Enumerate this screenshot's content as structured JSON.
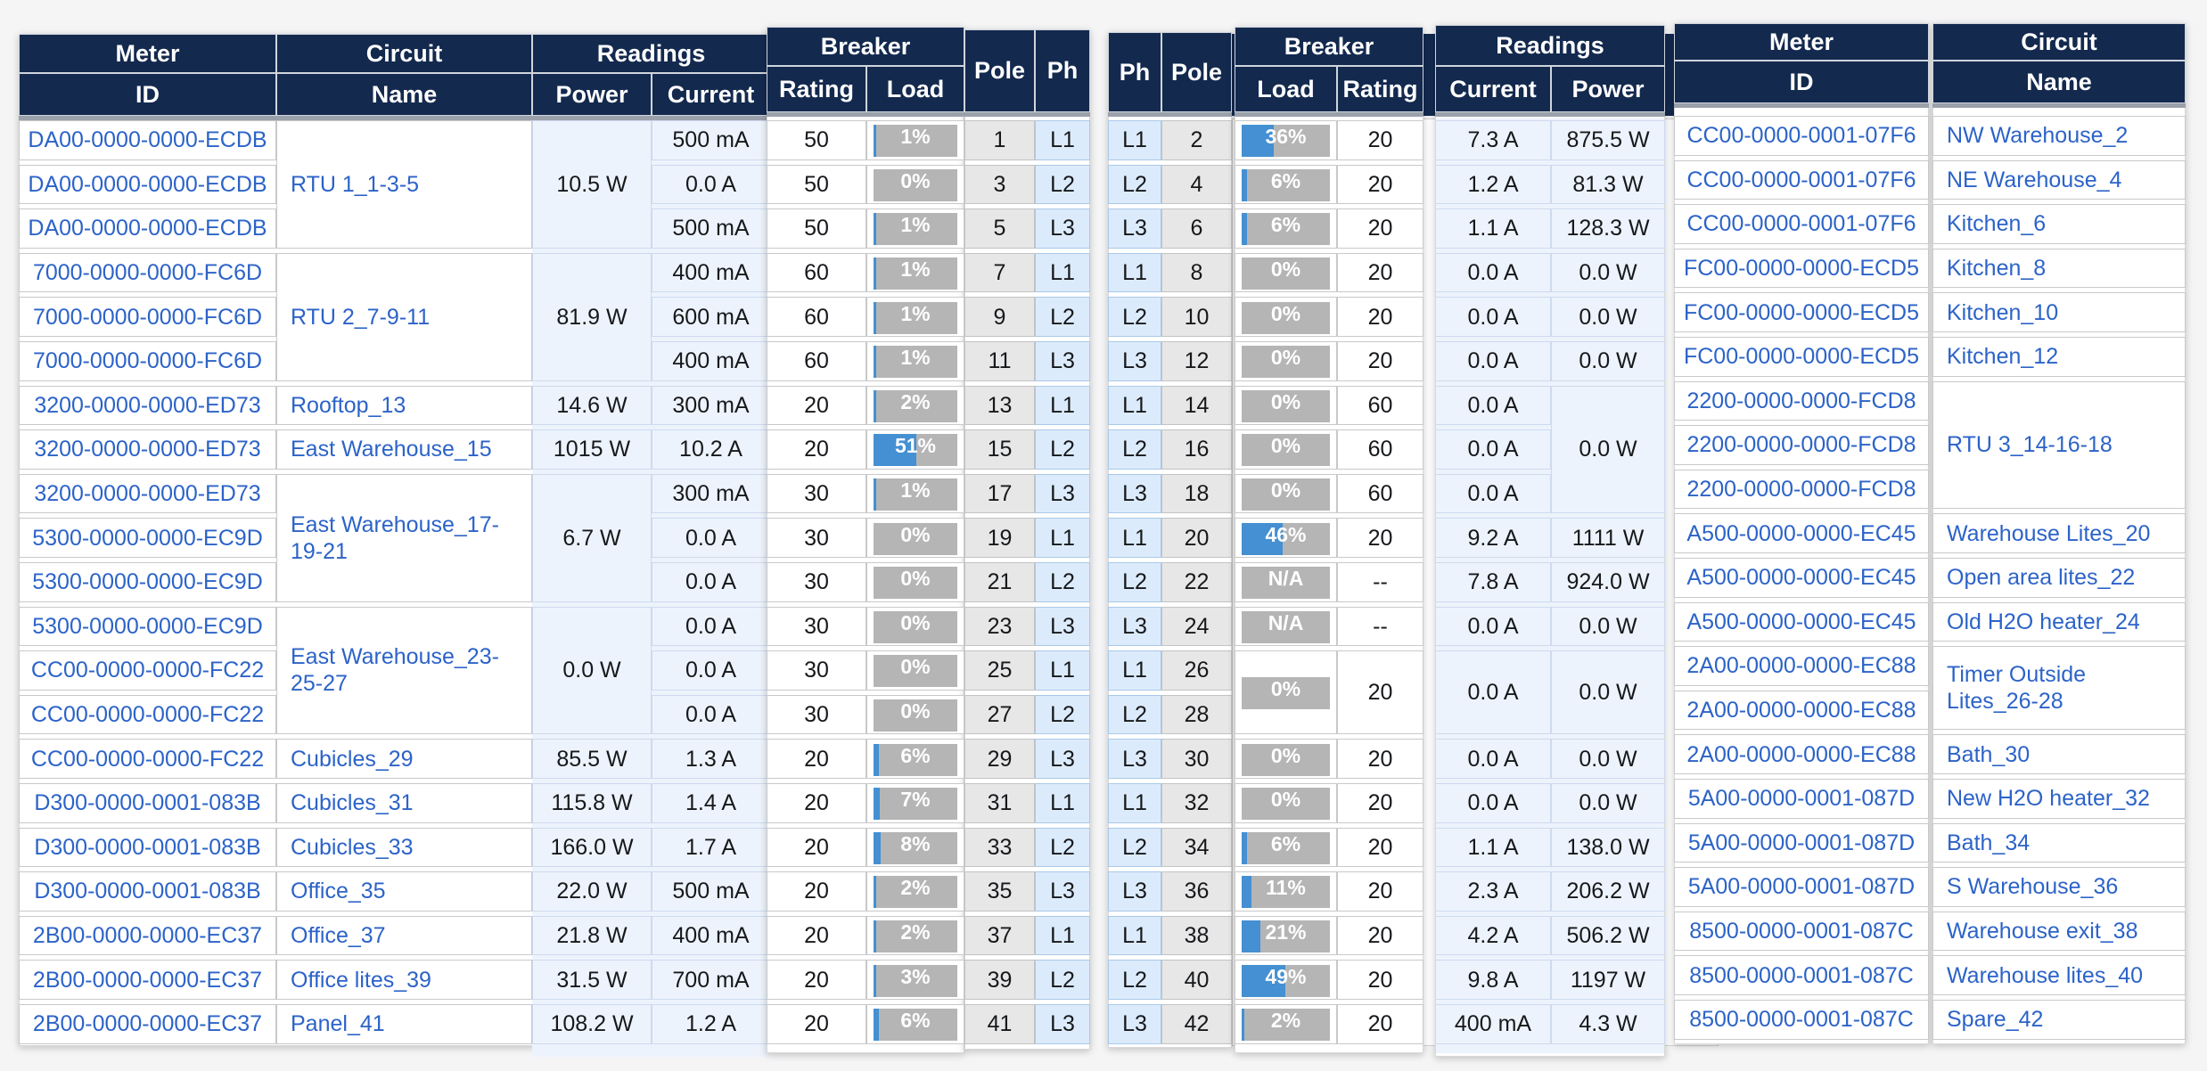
{
  "colors": {
    "header_bg": "#13294e",
    "link": "#2c63c8",
    "bar_fill": "#4490d2",
    "bar_track": "#b5b5b5",
    "pale_cell": "#edf3fc",
    "ph_cell": "#dcebfb",
    "pole_cell": "#e7e7e7",
    "page_bg": "#f5f5f6"
  },
  "left_table": {
    "group_labels": {
      "meter": "Meter",
      "circuit": "Circuit",
      "readings": "Readings",
      "breaker": "Breaker"
    },
    "col_labels": {
      "id": "ID",
      "name": "Name",
      "power": "Power",
      "current": "Current",
      "rating": "Rating",
      "load": "Load",
      "pole": "Pole",
      "ph": "Ph"
    },
    "rows": [
      {
        "id": "DA00-0000-0000-ECDB",
        "current": "500 mA",
        "rating": "50",
        "load": "1%",
        "load_pct": 1,
        "pole": "1",
        "ph": "L1"
      },
      {
        "id": "DA00-0000-0000-ECDB",
        "current": "0.0 A",
        "rating": "50",
        "load": "0%",
        "load_pct": 0,
        "pole": "3",
        "ph": "L2"
      },
      {
        "id": "DA00-0000-0000-ECDB",
        "current": "500 mA",
        "rating": "50",
        "load": "1%",
        "load_pct": 1,
        "pole": "5",
        "ph": "L3"
      },
      {
        "id": "7000-0000-0000-FC6D",
        "current": "400 mA",
        "rating": "60",
        "load": "1%",
        "load_pct": 1,
        "pole": "7",
        "ph": "L1"
      },
      {
        "id": "7000-0000-0000-FC6D",
        "current": "600 mA",
        "rating": "60",
        "load": "1%",
        "load_pct": 1,
        "pole": "9",
        "ph": "L2"
      },
      {
        "id": "7000-0000-0000-FC6D",
        "current": "400 mA",
        "rating": "60",
        "load": "1%",
        "load_pct": 1,
        "pole": "11",
        "ph": "L3"
      },
      {
        "id": "3200-0000-0000-ED73",
        "current": "300 mA",
        "rating": "20",
        "load": "2%",
        "load_pct": 2,
        "pole": "13",
        "ph": "L1"
      },
      {
        "id": "3200-0000-0000-ED73",
        "current": "10.2 A",
        "rating": "20",
        "load": "51%",
        "load_pct": 51,
        "pole": "15",
        "ph": "L2"
      },
      {
        "id": "3200-0000-0000-ED73",
        "current": "300 mA",
        "rating": "30",
        "load": "1%",
        "load_pct": 1,
        "pole": "17",
        "ph": "L3"
      },
      {
        "id": "5300-0000-0000-EC9D",
        "current": "0.0 A",
        "rating": "30",
        "load": "0%",
        "load_pct": 0,
        "pole": "19",
        "ph": "L1"
      },
      {
        "id": "5300-0000-0000-EC9D",
        "current": "0.0 A",
        "rating": "30",
        "load": "0%",
        "load_pct": 0,
        "pole": "21",
        "ph": "L2"
      },
      {
        "id": "5300-0000-0000-EC9D",
        "current": "0.0 A",
        "rating": "30",
        "load": "0%",
        "load_pct": 0,
        "pole": "23",
        "ph": "L3"
      },
      {
        "id": "CC00-0000-0000-FC22",
        "current": "0.0 A",
        "rating": "30",
        "load": "0%",
        "load_pct": 0,
        "pole": "25",
        "ph": "L1"
      },
      {
        "id": "CC00-0000-0000-FC22",
        "current": "0.0 A",
        "rating": "30",
        "load": "0%",
        "load_pct": 0,
        "pole": "27",
        "ph": "L2"
      },
      {
        "id": "CC00-0000-0000-FC22",
        "current": "1.3 A",
        "rating": "20",
        "load": "6%",
        "load_pct": 6,
        "pole": "29",
        "ph": "L3"
      },
      {
        "id": "D300-0000-0001-083B",
        "current": "1.4 A",
        "rating": "20",
        "load": "7%",
        "load_pct": 7,
        "pole": "31",
        "ph": "L1"
      },
      {
        "id": "D300-0000-0001-083B",
        "current": "1.7 A",
        "rating": "20",
        "load": "8%",
        "load_pct": 8,
        "pole": "33",
        "ph": "L2"
      },
      {
        "id": "D300-0000-0001-083B",
        "current": "500 mA",
        "rating": "20",
        "load": "2%",
        "load_pct": 2,
        "pole": "35",
        "ph": "L3"
      },
      {
        "id": "2B00-0000-0000-EC37",
        "current": "400 mA",
        "rating": "20",
        "load": "2%",
        "load_pct": 2,
        "pole": "37",
        "ph": "L1"
      },
      {
        "id": "2B00-0000-0000-EC37",
        "current": "700 mA",
        "rating": "20",
        "load": "3%",
        "load_pct": 3,
        "pole": "39",
        "ph": "L2"
      },
      {
        "id": "2B00-0000-0000-EC37",
        "current": "1.2 A",
        "rating": "20",
        "load": "6%",
        "load_pct": 6,
        "pole": "41",
        "ph": "L3"
      }
    ],
    "name_cells": [
      {
        "r": 0,
        "s": 3,
        "t": "RTU 1_1-3-5"
      },
      {
        "r": 3,
        "s": 3,
        "t": "RTU 2_7-9-11"
      },
      {
        "r": 6,
        "s": 1,
        "t": "Rooftop_13"
      },
      {
        "r": 7,
        "s": 1,
        "t": "East Warehouse_15"
      },
      {
        "r": 8,
        "s": 3,
        "t": "East Warehouse_17-19-21"
      },
      {
        "r": 11,
        "s": 3,
        "t": "East Warehouse_23-25-27"
      },
      {
        "r": 14,
        "s": 1,
        "t": "Cubicles_29"
      },
      {
        "r": 15,
        "s": 1,
        "t": "Cubicles_31"
      },
      {
        "r": 16,
        "s": 1,
        "t": "Cubicles_33"
      },
      {
        "r": 17,
        "s": 1,
        "t": "Office_35"
      },
      {
        "r": 18,
        "s": 1,
        "t": "Office_37"
      },
      {
        "r": 19,
        "s": 1,
        "t": "Office lites_39"
      },
      {
        "r": 20,
        "s": 1,
        "t": "Panel_41"
      }
    ],
    "power_cells": [
      {
        "r": 0,
        "s": 3,
        "t": "10.5 W"
      },
      {
        "r": 3,
        "s": 3,
        "t": "81.9 W"
      },
      {
        "r": 6,
        "s": 1,
        "t": "14.6 W"
      },
      {
        "r": 7,
        "s": 1,
        "t": "1015 W"
      },
      {
        "r": 8,
        "s": 3,
        "t": "6.7 W"
      },
      {
        "r": 11,
        "s": 3,
        "t": "0.0 W"
      },
      {
        "r": 14,
        "s": 1,
        "t": "85.5 W"
      },
      {
        "r": 15,
        "s": 1,
        "t": "115.8 W"
      },
      {
        "r": 16,
        "s": 1,
        "t": "166.0 W"
      },
      {
        "r": 17,
        "s": 1,
        "t": "22.0 W"
      },
      {
        "r": 18,
        "s": 1,
        "t": "21.8 W"
      },
      {
        "r": 19,
        "s": 1,
        "t": "31.5 W"
      },
      {
        "r": 20,
        "s": 1,
        "t": "108.2 W"
      }
    ]
  },
  "right_table": {
    "group_labels": {
      "breaker": "Breaker",
      "readings": "Readings",
      "meter": "Meter",
      "circuit": "Circuit"
    },
    "col_labels": {
      "ph": "Ph",
      "pole": "Pole",
      "load": "Load",
      "rating": "Rating",
      "current": "Current",
      "power": "Power",
      "id": "ID",
      "name": "Name"
    },
    "rows": [
      {
        "ph": "L1",
        "pole": "2",
        "id": "CC00-0000-0001-07F6"
      },
      {
        "ph": "L2",
        "pole": "4",
        "id": "CC00-0000-0001-07F6"
      },
      {
        "ph": "L3",
        "pole": "6",
        "id": "CC00-0000-0001-07F6"
      },
      {
        "ph": "L1",
        "pole": "8",
        "id": "FC00-0000-0000-ECD5"
      },
      {
        "ph": "L2",
        "pole": "10",
        "id": "FC00-0000-0000-ECD5"
      },
      {
        "ph": "L3",
        "pole": "12",
        "id": "FC00-0000-0000-ECD5"
      },
      {
        "ph": "L1",
        "pole": "14",
        "id": "2200-0000-0000-FCD8"
      },
      {
        "ph": "L2",
        "pole": "16",
        "id": "2200-0000-0000-FCD8"
      },
      {
        "ph": "L3",
        "pole": "18",
        "id": "2200-0000-0000-FCD8"
      },
      {
        "ph": "L1",
        "pole": "20",
        "id": "A500-0000-0000-EC45"
      },
      {
        "ph": "L2",
        "pole": "22",
        "id": "A500-0000-0000-EC45"
      },
      {
        "ph": "L3",
        "pole": "24",
        "id": "A500-0000-0000-EC45"
      },
      {
        "ph": "L1",
        "pole": "26",
        "id": "2A00-0000-0000-EC88"
      },
      {
        "ph": "L2",
        "pole": "28",
        "id": "2A00-0000-0000-EC88"
      },
      {
        "ph": "L3",
        "pole": "30",
        "id": "2A00-0000-0000-EC88"
      },
      {
        "ph": "L1",
        "pole": "32",
        "id": "5A00-0000-0001-087D"
      },
      {
        "ph": "L2",
        "pole": "34",
        "id": "5A00-0000-0001-087D"
      },
      {
        "ph": "L3",
        "pole": "36",
        "id": "5A00-0000-0001-087D"
      },
      {
        "ph": "L1",
        "pole": "38",
        "id": "8500-0000-0001-087C"
      },
      {
        "ph": "L2",
        "pole": "40",
        "id": "8500-0000-0001-087C"
      },
      {
        "ph": "L3",
        "pole": "42",
        "id": "8500-0000-0001-087C"
      }
    ],
    "load_cells": [
      {
        "r": 0,
        "s": 1,
        "t": "36%",
        "pct": 36
      },
      {
        "r": 1,
        "s": 1,
        "t": "6%",
        "pct": 6
      },
      {
        "r": 2,
        "s": 1,
        "t": "6%",
        "pct": 6
      },
      {
        "r": 3,
        "s": 1,
        "t": "0%",
        "pct": 0
      },
      {
        "r": 4,
        "s": 1,
        "t": "0%",
        "pct": 0
      },
      {
        "r": 5,
        "s": 1,
        "t": "0%",
        "pct": 0
      },
      {
        "r": 6,
        "s": 1,
        "t": "0%",
        "pct": 0
      },
      {
        "r": 7,
        "s": 1,
        "t": "0%",
        "pct": 0
      },
      {
        "r": 8,
        "s": 1,
        "t": "0%",
        "pct": 0
      },
      {
        "r": 9,
        "s": 1,
        "t": "46%",
        "pct": 46
      },
      {
        "r": 10,
        "s": 1,
        "t": "N/A",
        "pct": null
      },
      {
        "r": 11,
        "s": 1,
        "t": "N/A",
        "pct": null
      },
      {
        "r": 12,
        "s": 2,
        "t": "0%",
        "pct": 0
      },
      {
        "r": 14,
        "s": 1,
        "t": "0%",
        "pct": 0
      },
      {
        "r": 15,
        "s": 1,
        "t": "0%",
        "pct": 0
      },
      {
        "r": 16,
        "s": 1,
        "t": "6%",
        "pct": 6
      },
      {
        "r": 17,
        "s": 1,
        "t": "11%",
        "pct": 11
      },
      {
        "r": 18,
        "s": 1,
        "t": "21%",
        "pct": 21
      },
      {
        "r": 19,
        "s": 1,
        "t": "49%",
        "pct": 49
      },
      {
        "r": 20,
        "s": 1,
        "t": "2%",
        "pct": 2
      }
    ],
    "rating_cells": [
      {
        "r": 0,
        "s": 1,
        "t": "20"
      },
      {
        "r": 1,
        "s": 1,
        "t": "20"
      },
      {
        "r": 2,
        "s": 1,
        "t": "20"
      },
      {
        "r": 3,
        "s": 1,
        "t": "20"
      },
      {
        "r": 4,
        "s": 1,
        "t": "20"
      },
      {
        "r": 5,
        "s": 1,
        "t": "20"
      },
      {
        "r": 6,
        "s": 1,
        "t": "60"
      },
      {
        "r": 7,
        "s": 1,
        "t": "60"
      },
      {
        "r": 8,
        "s": 1,
        "t": "60"
      },
      {
        "r": 9,
        "s": 1,
        "t": "20"
      },
      {
        "r": 10,
        "s": 1,
        "t": "--"
      },
      {
        "r": 11,
        "s": 1,
        "t": "--"
      },
      {
        "r": 12,
        "s": 2,
        "t": "20"
      },
      {
        "r": 14,
        "s": 1,
        "t": "20"
      },
      {
        "r": 15,
        "s": 1,
        "t": "20"
      },
      {
        "r": 16,
        "s": 1,
        "t": "20"
      },
      {
        "r": 17,
        "s": 1,
        "t": "20"
      },
      {
        "r": 18,
        "s": 1,
        "t": "20"
      },
      {
        "r": 19,
        "s": 1,
        "t": "20"
      },
      {
        "r": 20,
        "s": 1,
        "t": "20"
      }
    ],
    "current_cells": [
      {
        "r": 0,
        "s": 1,
        "t": "7.3 A"
      },
      {
        "r": 1,
        "s": 1,
        "t": "1.2 A"
      },
      {
        "r": 2,
        "s": 1,
        "t": "1.1 A"
      },
      {
        "r": 3,
        "s": 1,
        "t": "0.0 A"
      },
      {
        "r": 4,
        "s": 1,
        "t": "0.0 A"
      },
      {
        "r": 5,
        "s": 1,
        "t": "0.0 A"
      },
      {
        "r": 6,
        "s": 1,
        "t": "0.0 A"
      },
      {
        "r": 7,
        "s": 1,
        "t": "0.0 A"
      },
      {
        "r": 8,
        "s": 1,
        "t": "0.0 A"
      },
      {
        "r": 9,
        "s": 1,
        "t": "9.2 A"
      },
      {
        "r": 10,
        "s": 1,
        "t": "7.8 A"
      },
      {
        "r": 11,
        "s": 1,
        "t": "0.0 A"
      },
      {
        "r": 12,
        "s": 2,
        "t": "0.0 A"
      },
      {
        "r": 14,
        "s": 1,
        "t": "0.0 A"
      },
      {
        "r": 15,
        "s": 1,
        "t": "0.0 A"
      },
      {
        "r": 16,
        "s": 1,
        "t": "1.1 A"
      },
      {
        "r": 17,
        "s": 1,
        "t": "2.3 A"
      },
      {
        "r": 18,
        "s": 1,
        "t": "4.2 A"
      },
      {
        "r": 19,
        "s": 1,
        "t": "9.8 A"
      },
      {
        "r": 20,
        "s": 1,
        "t": "400 mA"
      }
    ],
    "power_cells": [
      {
        "r": 0,
        "s": 1,
        "t": "875.5 W"
      },
      {
        "r": 1,
        "s": 1,
        "t": "81.3 W"
      },
      {
        "r": 2,
        "s": 1,
        "t": "128.3 W"
      },
      {
        "r": 3,
        "s": 1,
        "t": "0.0 W"
      },
      {
        "r": 4,
        "s": 1,
        "t": "0.0 W"
      },
      {
        "r": 5,
        "s": 1,
        "t": "0.0 W"
      },
      {
        "r": 6,
        "s": 3,
        "t": "0.0 W"
      },
      {
        "r": 9,
        "s": 1,
        "t": "1111 W"
      },
      {
        "r": 10,
        "s": 1,
        "t": "924.0 W"
      },
      {
        "r": 11,
        "s": 1,
        "t": "0.0 W"
      },
      {
        "r": 12,
        "s": 2,
        "t": "0.0 W"
      },
      {
        "r": 14,
        "s": 1,
        "t": "0.0 W"
      },
      {
        "r": 15,
        "s": 1,
        "t": "0.0 W"
      },
      {
        "r": 16,
        "s": 1,
        "t": "138.0 W"
      },
      {
        "r": 17,
        "s": 1,
        "t": "206.2 W"
      },
      {
        "r": 18,
        "s": 1,
        "t": "506.2 W"
      },
      {
        "r": 19,
        "s": 1,
        "t": "1197 W"
      },
      {
        "r": 20,
        "s": 1,
        "t": "4.3 W"
      }
    ],
    "name_cells": [
      {
        "r": 0,
        "s": 1,
        "t": "NW Warehouse_2"
      },
      {
        "r": 1,
        "s": 1,
        "t": "NE Warehouse_4"
      },
      {
        "r": 2,
        "s": 1,
        "t": "Kitchen_6"
      },
      {
        "r": 3,
        "s": 1,
        "t": "Kitchen_8"
      },
      {
        "r": 4,
        "s": 1,
        "t": "Kitchen_10"
      },
      {
        "r": 5,
        "s": 1,
        "t": "Kitchen_12"
      },
      {
        "r": 6,
        "s": 3,
        "t": "RTU 3_14-16-18"
      },
      {
        "r": 9,
        "s": 1,
        "t": "Warehouse Lites_20"
      },
      {
        "r": 10,
        "s": 1,
        "t": "Open area lites_22"
      },
      {
        "r": 11,
        "s": 1,
        "t": "Old H2O heater_24"
      },
      {
        "r": 12,
        "s": 2,
        "t": "Timer Outside Lites_26-28"
      },
      {
        "r": 14,
        "s": 1,
        "t": "Bath_30"
      },
      {
        "r": 15,
        "s": 1,
        "t": "New H2O heater_32"
      },
      {
        "r": 16,
        "s": 1,
        "t": "Bath_34"
      },
      {
        "r": 17,
        "s": 1,
        "t": "S Warehouse_36"
      },
      {
        "r": 18,
        "s": 1,
        "t": "Warehouse exit_38"
      },
      {
        "r": 19,
        "s": 1,
        "t": "Warehouse lites_40"
      },
      {
        "r": 20,
        "s": 1,
        "t": "Spare_42"
      }
    ]
  }
}
